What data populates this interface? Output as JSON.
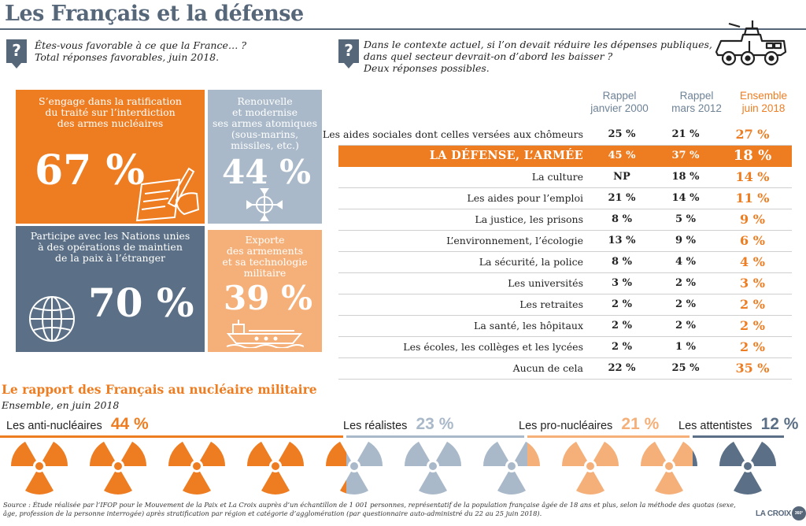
{
  "page": {
    "title": "Les Français et la défense"
  },
  "question1": {
    "badge": "?",
    "line1": "Êtes-vous favorable à ce que la France… ?",
    "line2": "Total réponses favorables, juin 2018."
  },
  "question2": {
    "badge": "?",
    "line1": "Dans le contexte actuel, si l’on devait réduire les dépenses publiques,",
    "line2": "dans quel secteur devrait-on d’abord les baisser ?",
    "line3": "Deux réponses possibles."
  },
  "tiles": [
    {
      "lines": [
        "S’engage dans la ratification",
        "du traité sur l’interdiction",
        "des armes nucléaires"
      ],
      "pct": "67 %",
      "icon": "hand-signing-icon",
      "color": "#ee7d22"
    },
    {
      "lines": [
        "Renouvelle",
        "et modernise",
        "ses armes atomiques",
        "(sous-marins,",
        "missiles, etc.)"
      ],
      "pct": "44 %",
      "icon": "crosshair-icon",
      "color": "#a9b9c9"
    },
    {
      "lines": [
        "Participe avec les Nations unies",
        "à des opérations de maintien",
        "de la paix à l’étranger"
      ],
      "pct": "70 %",
      "icon": "globe-icon",
      "color": "#5b7086"
    },
    {
      "lines": [
        "Exporte",
        "des armements",
        "et sa technologie",
        "militaire"
      ],
      "pct": "39 %",
      "icon": "ship-icon",
      "color": "#f5b07a"
    }
  ],
  "table": {
    "headers": [
      {
        "line1": "Rappel",
        "line2": "janvier 2000"
      },
      {
        "line1": "Rappel",
        "line2": "mars 2012"
      },
      {
        "line1": "Ensemble",
        "line2": "juin 2018"
      }
    ],
    "rows": [
      {
        "label": "Les aides sociales dont celles versées aux chômeurs",
        "v2000": "25 %",
        "v2012": "21 %",
        "v2018": "27 %"
      },
      {
        "label": "LA DÉFENSE, L’ARMÉE",
        "v2000": "45 %",
        "v2012": "37 %",
        "v2018": "18 %",
        "highlight": true
      },
      {
        "label": "La culture",
        "v2000": "NP",
        "v2012": "18 %",
        "v2018": "14 %"
      },
      {
        "label": "Les aides pour l’emploi",
        "v2000": "21 %",
        "v2012": "14 %",
        "v2018": "11 %"
      },
      {
        "label": "La justice, les prisons",
        "v2000": "8 %",
        "v2012": "5 %",
        "v2018": "9 %"
      },
      {
        "label": "L’environnement, l’écologie",
        "v2000": "13 %",
        "v2012": "9 %",
        "v2018": "6 %"
      },
      {
        "label": "La sécurité, la police",
        "v2000": "8 %",
        "v2012": "4 %",
        "v2018": "4 %"
      },
      {
        "label": "Les universités",
        "v2000": "3 %",
        "v2012": "2 %",
        "v2018": "3 %"
      },
      {
        "label": "Les retraites",
        "v2000": "2 %",
        "v2012": "2 %",
        "v2018": "2 %"
      },
      {
        "label": "La santé, les hôpitaux",
        "v2000": "2 %",
        "v2012": "2 %",
        "v2018": "2 %"
      },
      {
        "label": "Les écoles, les collèges et les lycées",
        "v2000": "2 %",
        "v2012": "1 %",
        "v2018": "2 %"
      },
      {
        "label": "Aucun de cela",
        "v2000": "22 %",
        "v2012": "25 %",
        "v2018": "35 %"
      }
    ]
  },
  "nuclear": {
    "title": "Le rapport des Français au nucléaire militaire",
    "subtitle": "Ensemble, en juin 2018",
    "groups": [
      {
        "label": "Les anti-nucléaires",
        "pct": "44 %",
        "color": "#ee7d22"
      },
      {
        "label": "Les réalistes",
        "pct": "23 %",
        "color": "#a9b9c9"
      },
      {
        "label": "Les pro-nucléaires",
        "pct": "21 %",
        "color": "#f5b07a"
      },
      {
        "label": "Les attentistes",
        "pct": "12 %",
        "color": "#5b7086"
      }
    ]
  },
  "chart_data": [
    {
      "type": "bar",
      "title": "Êtes-vous favorable à ce que la France… ?",
      "subtitle": "Total réponses favorables, juin 2018.",
      "categories": [
        "S’engage dans la ratification du traité sur l’interdiction des armes nucléaires",
        "Renouvelle et modernise ses armes atomiques (sous-marins, missiles, etc.)",
        "Participe avec les Nations unies à des opérations de maintien de la paix à l’étranger",
        "Exporte des armements et sa technologie militaire"
      ],
      "values": [
        67,
        44,
        70,
        39
      ]
    },
    {
      "type": "table",
      "title": "Dans le contexte actuel, si l’on devait réduire les dépenses publiques, dans quel secteur devrait-on d’abord les baisser ?",
      "columns": [
        "Rappel janvier 2000",
        "Rappel mars 2012",
        "Ensemble juin 2018"
      ],
      "categories": [
        "Les aides sociales dont celles versées aux chômeurs",
        "LA DÉFENSE, L’ARMÉE",
        "La culture",
        "Les aides pour l’emploi",
        "La justice, les prisons",
        "L’environnement, l’écologie",
        "La sécurité, la police",
        "Les universités",
        "Les retraites",
        "La santé, les hôpitaux",
        "Les écoles, les collèges et les lycées",
        "Aucun de cela"
      ],
      "series": [
        {
          "name": "Rappel janvier 2000",
          "values": [
            25,
            45,
            null,
            21,
            8,
            13,
            8,
            3,
            2,
            2,
            2,
            22
          ]
        },
        {
          "name": "Rappel mars 2012",
          "values": [
            21,
            37,
            18,
            14,
            5,
            9,
            4,
            2,
            2,
            2,
            1,
            25
          ]
        },
        {
          "name": "Ensemble juin 2018",
          "values": [
            27,
            18,
            14,
            11,
            9,
            6,
            4,
            3,
            2,
            2,
            2,
            35
          ]
        }
      ]
    },
    {
      "type": "bar",
      "title": "Le rapport des Français au nucléaire militaire",
      "subtitle": "Ensemble, en juin 2018",
      "categories": [
        "Les anti-nucléaires",
        "Les réalistes",
        "Les pro-nucléaires",
        "Les attentistes"
      ],
      "values": [
        44,
        23,
        21,
        12
      ]
    }
  ],
  "source": "Source : Étude réalisée par l’IFOP pour le Mouvement de la Paix et La Croix auprès d’un échantillon de 1 001 personnes, représentatif de la population française âgée de 18 ans et plus, selon la méthode des quotas (sexe, âge, profession de la personne interrogée) après stratification par région et catégorie d’agglomération (par questionnaire auto-administré du 22 au 25 juin 2018).",
  "logo": {
    "text": "LA CROIX",
    "mark": "360°"
  }
}
